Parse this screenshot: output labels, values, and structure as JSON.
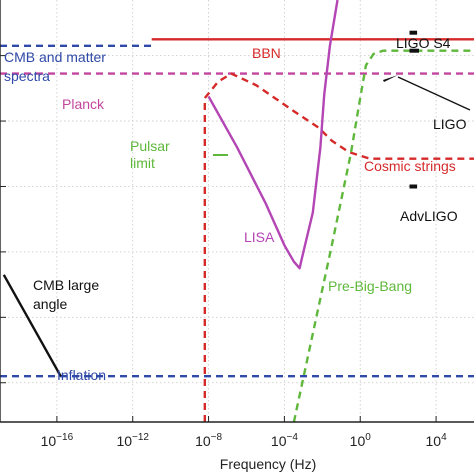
{
  "chart_data": {
    "type": "line",
    "xlabel": "Frequency (Hz)",
    "xscale": "log",
    "xlim": [
      -19,
      6
    ],
    "xticks": [
      {
        "exp": -16,
        "label_base": "10",
        "label_exp": "−16"
      },
      {
        "exp": -12,
        "label_base": "10",
        "label_exp": "−12"
      },
      {
        "exp": -8,
        "label_base": "10",
        "label_exp": "−8"
      },
      {
        "exp": -4,
        "label_base": "10",
        "label_exp": "−4"
      },
      {
        "exp": 0,
        "label_base": "10",
        "label_exp": "0"
      },
      {
        "exp": 4,
        "label_base": "10",
        "label_exp": "4"
      }
    ],
    "ylim": [
      -17.2,
      -4.3
    ],
    "yticks": [
      -16,
      -14,
      -12,
      -10,
      -8,
      -6
    ],
    "grid": true,
    "series": [
      {
        "name": "CMB and matter spectra",
        "color": "#2f49a8",
        "style": "dashed",
        "x": [
          -19,
          -11
        ],
        "y": [
          -5.7,
          -5.7
        ]
      },
      {
        "name": "BBN",
        "color": "#d62a2a",
        "style": "solid",
        "x": [
          -11,
          6
        ],
        "y": [
          -5.5,
          -5.5
        ]
      },
      {
        "name": "Planck",
        "color": "#c2459f",
        "style": "dashed",
        "x": [
          -19,
          6
        ],
        "y": [
          -6.55,
          -6.55
        ]
      },
      {
        "name": "Pulsar limit",
        "color": "#d62a2a",
        "style": "dashed",
        "x": [
          -8.2,
          -8.2,
          -7.5,
          -6.8,
          -5.5,
          -4.5,
          -3.5,
          -2.2,
          -1.5,
          -0.6,
          0.5,
          2,
          6
        ],
        "y": [
          -17.2,
          -7.3,
          -6.8,
          -6.55,
          -6.9,
          -7.3,
          -7.7,
          -8.2,
          -8.6,
          -8.95,
          -9.15,
          -9.15,
          -9.15
        ]
      },
      {
        "name": "LISA",
        "color": "#b445b4",
        "style": "solid",
        "x": [
          -8,
          -6.5,
          -5,
          -4,
          -3.5,
          -3.2,
          -3,
          -2.5,
          -2.1,
          -1.9,
          -1.6,
          -1.2
        ],
        "y": [
          -7.25,
          -8.8,
          -10.5,
          -11.8,
          -12.3,
          -12.5,
          -12.0,
          -10.8,
          -8.8,
          -7.2,
          -5.7,
          -4.3
        ]
      },
      {
        "name": "Pre-Big-Bang",
        "color": "#5fb83c",
        "style": "dashed",
        "x": [
          -3.5,
          -2.5,
          -1.5,
          -0.5,
          0,
          0.3,
          0.7,
          1.2,
          2,
          6
        ],
        "y": [
          -17.2,
          -14.5,
          -11.8,
          -9.0,
          -7.3,
          -6.3,
          -5.95,
          -5.85,
          -5.85,
          -5.85
        ]
      },
      {
        "name": "Inflation",
        "color": "#2f49a8",
        "style": "dashed",
        "x": [
          -19,
          -15.8,
          -15.5,
          6
        ],
        "y": [
          -15.8,
          -15.8,
          -15.8,
          -15.8
        ]
      },
      {
        "name": "CMB large angle",
        "color": "#111111",
        "style": "solid",
        "x": [
          -18.8,
          -15.8
        ],
        "y": [
          -12.7,
          -15.8
        ]
      },
      {
        "name": "LIGO S4",
        "color": "#111111",
        "style": "segment",
        "x": [
          2.6,
          3.0
        ],
        "y": [
          -5.3,
          -5.3
        ]
      },
      {
        "name": "LIGO",
        "color": "#111111",
        "style": "segment",
        "x": [
          2.6,
          3.1
        ],
        "y": [
          -5.85,
          -5.85
        ]
      },
      {
        "name": "AdvLIGO",
        "color": "#111111",
        "style": "segment",
        "x": [
          2.6,
          3.0
        ],
        "y": [
          -10.0,
          -10.0
        ]
      }
    ],
    "annotations": [
      {
        "text": "CMB and matter",
        "color": "#2f49a8"
      },
      {
        "text": "spectra",
        "color": "#2f49a8"
      },
      {
        "text": "BBN",
        "color": "#d62a2a"
      },
      {
        "text": "LIGO S4",
        "color": "#111111"
      },
      {
        "text": "Planck",
        "color": "#c2459f"
      },
      {
        "text": "LIGO",
        "color": "#111111"
      },
      {
        "text": "Pulsar",
        "color": "#5fb83c"
      },
      {
        "text": "limit",
        "color": "#5fb83c"
      },
      {
        "text": "Cosmic strings",
        "color": "#d62a2a"
      },
      {
        "text": "AdvLIGO",
        "color": "#111111"
      },
      {
        "text": "LISA",
        "color": "#b445b4"
      },
      {
        "text": "CMB large",
        "color": "#111111"
      },
      {
        "text": "angle",
        "color": "#111111"
      },
      {
        "text": "Pre-Big-Bang",
        "color": "#5fb83c"
      },
      {
        "text": "Inflation",
        "color": "#2f49a8"
      }
    ]
  }
}
